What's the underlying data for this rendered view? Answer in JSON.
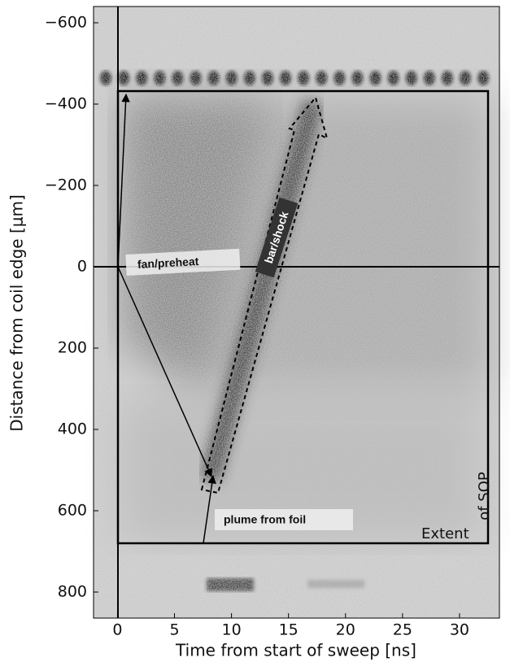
{
  "chart_data": {
    "type": "image",
    "xlabel": "Time from start of sweep [ns]",
    "ylabel": "Distance from coil edge [μm]",
    "xlim": [
      -2.1,
      33.5
    ],
    "ylim": [
      -640,
      864
    ],
    "xticks": [
      0,
      5,
      10,
      15,
      20,
      25,
      30
    ],
    "yticks": [
      {
        "value": -600,
        "label": "−600"
      },
      {
        "value": -400,
        "label": "−400"
      },
      {
        "value": -200,
        "label": "−200"
      },
      0,
      200,
      400,
      600,
      800
    ],
    "y_inverted": true,
    "annotations": [
      "fan/preheat",
      "bar/shock",
      "plume from foil",
      "Extent",
      "of SOP"
    ]
  }
}
